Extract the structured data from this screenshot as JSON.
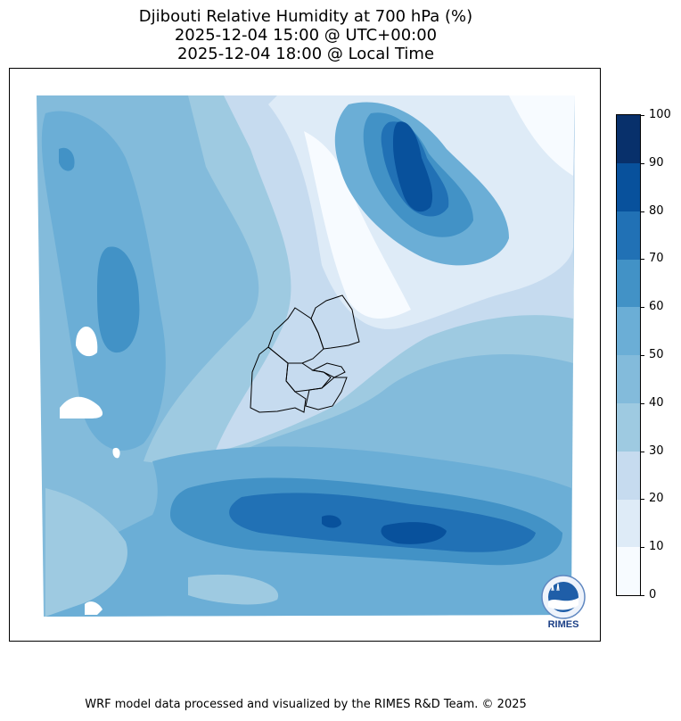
{
  "title": {
    "line1": "Djibouti Relative Humidity at 700 hPa (%)",
    "line2": "2025-12-04 15:00 @ UTC+00:00",
    "line3": "2025-12-04 18:00 @ Local Time"
  },
  "colorbar": {
    "levels": [
      "0",
      "10",
      "20",
      "30",
      "40",
      "50",
      "60",
      "70",
      "80",
      "90",
      "100"
    ],
    "colors": [
      "#f7fbff",
      "#deebf7",
      "#c6dbef",
      "#9ecae1",
      "#83bbdb",
      "#6baed6",
      "#4292c6",
      "#2171b5",
      "#08519c",
      "#08306b"
    ]
  },
  "logo": {
    "text": "RIMES"
  },
  "footer": "WRF model data processed and visualized by the RIMES R&D Team. © 2025"
}
